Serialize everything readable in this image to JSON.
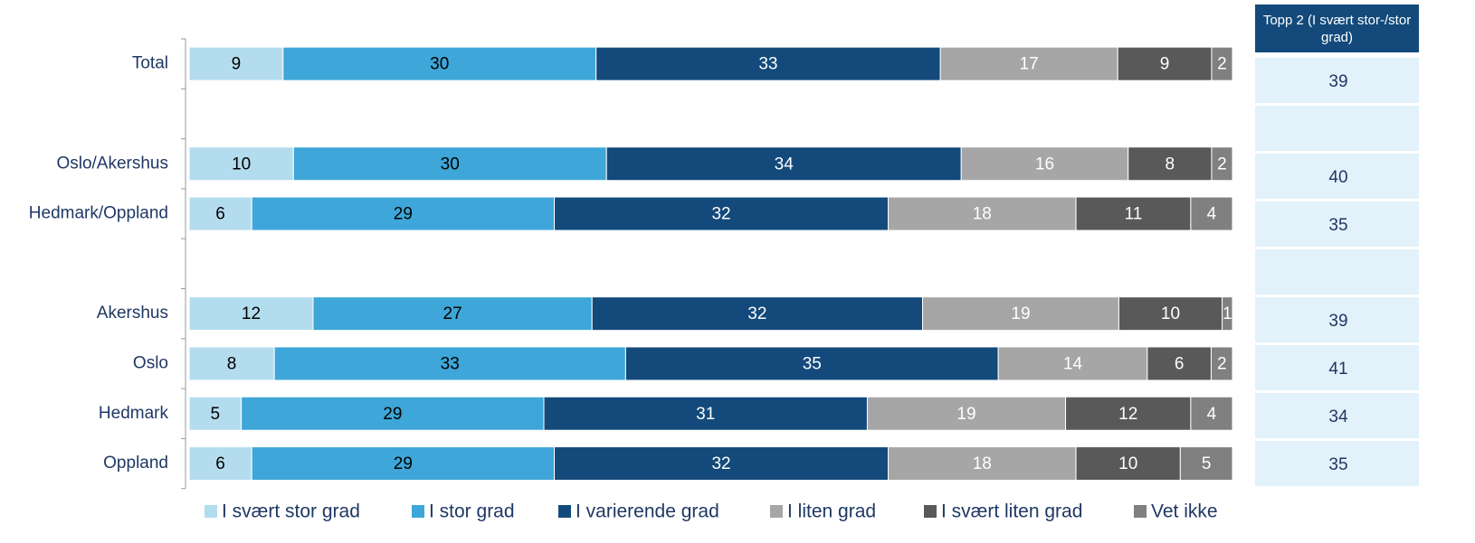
{
  "chart_data": {
    "type": "stacked-bar-horizontal",
    "categories": [
      "Total",
      null,
      "Oslo/Akershus",
      "Hedmark/Oppland",
      null,
      "Akershus",
      "Oslo",
      "Hedmark",
      "Oppland"
    ],
    "series": [
      {
        "name": "I svært stor grad",
        "color": "#b4dcef",
        "values": [
          9,
          null,
          10,
          6,
          null,
          12,
          8,
          5,
          6
        ]
      },
      {
        "name": "I stor grad",
        "color": "#3ea6d8",
        "values": [
          30,
          null,
          30,
          29,
          null,
          27,
          33,
          29,
          29
        ]
      },
      {
        "name": "I varierende grad",
        "color": "#134a7b",
        "values": [
          33,
          null,
          34,
          32,
          null,
          32,
          35,
          31,
          32
        ]
      },
      {
        "name": "I liten grad",
        "color": "#a6a6a6",
        "values": [
          17,
          null,
          16,
          18,
          null,
          19,
          14,
          19,
          18
        ]
      },
      {
        "name": "I svært liten grad",
        "color": "#595959",
        "values": [
          9,
          null,
          8,
          11,
          null,
          10,
          6,
          12,
          10
        ]
      },
      {
        "name": "Vet ikke",
        "color": "#808080",
        "values": [
          2,
          null,
          2,
          4,
          null,
          1,
          2,
          4,
          5
        ]
      }
    ],
    "side_table": {
      "header": "Topp 2 (I svært stor-/stor grad)",
      "values": [
        39,
        null,
        40,
        35,
        null,
        39,
        41,
        34,
        35
      ]
    }
  }
}
